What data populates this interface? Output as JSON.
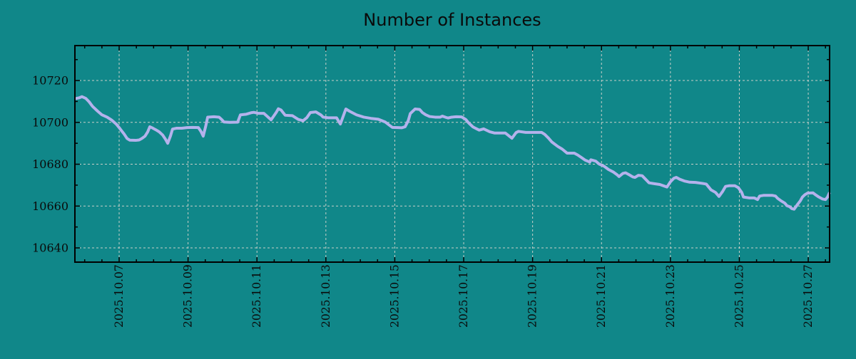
{
  "chart_data": {
    "type": "line",
    "title": "Number of Instances",
    "xlabel": "",
    "ylabel": "",
    "x_tick_labels": [
      "2025.10.07",
      "2025.10.09",
      "2025.10.11",
      "2025.10.13",
      "2025.10.15",
      "2025.10.17",
      "2025.10.19",
      "2025.10.21",
      "2025.10.23",
      "2025.10.25",
      "2025.10.27"
    ],
    "x_tick_days": [
      0,
      2,
      4,
      6,
      8,
      10,
      12,
      14,
      16,
      18,
      20
    ],
    "x_minor_step_days": 0.5,
    "xlim_days": [
      -1.284,
      20.62
    ],
    "y_ticks": [
      10640,
      10660,
      10680,
      10700,
      10720
    ],
    "y_minor_step": 10,
    "ylim": [
      10633.2,
      10736.7
    ],
    "grid": true,
    "legend": "none",
    "colors": {
      "background": "#108789",
      "grid": "#c8cfc8",
      "axis": "#000000",
      "text": "#0a0a0a",
      "line": "#b4b2ec"
    },
    "series": [
      {
        "name": "instances",
        "color": "#b4b2ec",
        "points": [
          [
            -1.28,
            10711.3
          ],
          [
            -1.15,
            10711.8
          ],
          [
            -1.08,
            10712.3
          ],
          [
            -0.97,
            10711.5
          ],
          [
            -0.87,
            10709.8
          ],
          [
            -0.77,
            10707.6
          ],
          [
            -0.62,
            10705.3
          ],
          [
            -0.5,
            10703.6
          ],
          [
            -0.35,
            10702.5
          ],
          [
            -0.21,
            10701.0
          ],
          [
            -0.08,
            10699.1
          ],
          [
            0.0,
            10697.5
          ],
          [
            0.06,
            10696.2
          ],
          [
            0.15,
            10694.3
          ],
          [
            0.23,
            10692.3
          ],
          [
            0.31,
            10691.5
          ],
          [
            0.48,
            10691.4
          ],
          [
            0.58,
            10691.6
          ],
          [
            0.66,
            10692.3
          ],
          [
            0.75,
            10693.4
          ],
          [
            0.83,
            10695.5
          ],
          [
            0.89,
            10697.9
          ],
          [
            0.97,
            10697.3
          ],
          [
            1.06,
            10696.5
          ],
          [
            1.16,
            10695.5
          ],
          [
            1.26,
            10694.0
          ],
          [
            1.35,
            10691.8
          ],
          [
            1.41,
            10690.0
          ],
          [
            1.49,
            10693.5
          ],
          [
            1.55,
            10696.8
          ],
          [
            1.66,
            10697.2
          ],
          [
            1.82,
            10697.2
          ],
          [
            1.97,
            10697.5
          ],
          [
            2.13,
            10697.6
          ],
          [
            2.3,
            10697.5
          ],
          [
            2.38,
            10695.5
          ],
          [
            2.44,
            10693.4
          ],
          [
            2.51,
            10698.0
          ],
          [
            2.57,
            10702.5
          ],
          [
            2.75,
            10702.7
          ],
          [
            2.9,
            10702.5
          ],
          [
            2.98,
            10701.3
          ],
          [
            3.04,
            10700.2
          ],
          [
            3.21,
            10700.0
          ],
          [
            3.44,
            10700.1
          ],
          [
            3.52,
            10703.6
          ],
          [
            3.69,
            10703.9
          ],
          [
            3.83,
            10704.6
          ],
          [
            3.91,
            10704.8
          ],
          [
            4.04,
            10704.3
          ],
          [
            4.2,
            10704.3
          ],
          [
            4.29,
            10703.0
          ],
          [
            4.41,
            10701.2
          ],
          [
            4.56,
            10704.8
          ],
          [
            4.62,
            10706.5
          ],
          [
            4.7,
            10705.9
          ],
          [
            4.82,
            10703.4
          ],
          [
            5.03,
            10703.2
          ],
          [
            5.2,
            10701.4
          ],
          [
            5.34,
            10700.8
          ],
          [
            5.45,
            10702.3
          ],
          [
            5.55,
            10704.7
          ],
          [
            5.71,
            10705.0
          ],
          [
            5.86,
            10703.5
          ],
          [
            5.92,
            10702.5
          ],
          [
            6.07,
            10702.2
          ],
          [
            6.31,
            10702.2
          ],
          [
            6.42,
            10699.2
          ],
          [
            6.58,
            10706.4
          ],
          [
            6.69,
            10705.3
          ],
          [
            6.89,
            10703.6
          ],
          [
            7.1,
            10702.5
          ],
          [
            7.31,
            10701.9
          ],
          [
            7.52,
            10701.5
          ],
          [
            7.72,
            10700.2
          ],
          [
            7.83,
            10698.8
          ],
          [
            7.93,
            10697.6
          ],
          [
            8.09,
            10697.5
          ],
          [
            8.2,
            10697.4
          ],
          [
            8.3,
            10697.9
          ],
          [
            8.39,
            10700.8
          ],
          [
            8.45,
            10704.2
          ],
          [
            8.59,
            10706.4
          ],
          [
            8.72,
            10706.2
          ],
          [
            8.8,
            10704.7
          ],
          [
            8.9,
            10703.6
          ],
          [
            9.01,
            10702.8
          ],
          [
            9.17,
            10702.5
          ],
          [
            9.32,
            10702.5
          ],
          [
            9.38,
            10703.0
          ],
          [
            9.48,
            10702.4
          ],
          [
            9.55,
            10702.1
          ],
          [
            9.65,
            10702.5
          ],
          [
            9.79,
            10702.7
          ],
          [
            9.94,
            10702.6
          ],
          [
            10.06,
            10701.4
          ],
          [
            10.14,
            10699.8
          ],
          [
            10.27,
            10697.8
          ],
          [
            10.45,
            10696.3
          ],
          [
            10.58,
            10696.9
          ],
          [
            10.76,
            10695.5
          ],
          [
            10.9,
            10694.9
          ],
          [
            11.21,
            10694.9
          ],
          [
            11.28,
            10694.0
          ],
          [
            11.4,
            10692.4
          ],
          [
            11.52,
            10695.1
          ],
          [
            11.59,
            10695.7
          ],
          [
            11.8,
            10695.2
          ],
          [
            12.26,
            10695.2
          ],
          [
            12.35,
            10694.3
          ],
          [
            12.46,
            10692.5
          ],
          [
            12.56,
            10690.6
          ],
          [
            12.73,
            10688.5
          ],
          [
            12.86,
            10687.2
          ],
          [
            13.0,
            10685.3
          ],
          [
            13.21,
            10685.3
          ],
          [
            13.31,
            10684.4
          ],
          [
            13.41,
            10683.3
          ],
          [
            13.52,
            10682.0
          ],
          [
            13.62,
            10681.3
          ],
          [
            13.66,
            10681.0
          ],
          [
            13.69,
            10682.1
          ],
          [
            13.83,
            10681.5
          ],
          [
            13.93,
            10680.1
          ],
          [
            14.08,
            10679.0
          ],
          [
            14.2,
            10677.5
          ],
          [
            14.35,
            10676.2
          ],
          [
            14.45,
            10675.0
          ],
          [
            14.51,
            10674.1
          ],
          [
            14.62,
            10675.6
          ],
          [
            14.7,
            10675.9
          ],
          [
            14.8,
            10675.0
          ],
          [
            14.91,
            10673.9
          ],
          [
            14.97,
            10673.7
          ],
          [
            15.07,
            10674.7
          ],
          [
            15.18,
            10674.5
          ],
          [
            15.28,
            10672.8
          ],
          [
            15.38,
            10671.1
          ],
          [
            15.53,
            10670.7
          ],
          [
            15.69,
            10670.3
          ],
          [
            15.9,
            10669.1
          ],
          [
            16.0,
            10671.6
          ],
          [
            16.1,
            10673.3
          ],
          [
            16.17,
            10673.7
          ],
          [
            16.27,
            10672.8
          ],
          [
            16.42,
            10671.9
          ],
          [
            16.56,
            10671.4
          ],
          [
            16.73,
            10671.3
          ],
          [
            16.94,
            10670.8
          ],
          [
            17.04,
            10670.5
          ],
          [
            17.18,
            10667.7
          ],
          [
            17.31,
            10666.5
          ],
          [
            17.41,
            10664.6
          ],
          [
            17.52,
            10667.1
          ],
          [
            17.6,
            10669.4
          ],
          [
            17.7,
            10669.7
          ],
          [
            17.87,
            10669.7
          ],
          [
            17.97,
            10668.8
          ],
          [
            18.07,
            10666.5
          ],
          [
            18.12,
            10664.3
          ],
          [
            18.28,
            10663.9
          ],
          [
            18.43,
            10663.9
          ],
          [
            18.53,
            10663.1
          ],
          [
            18.59,
            10664.8
          ],
          [
            18.7,
            10665.1
          ],
          [
            18.96,
            10665.1
          ],
          [
            19.05,
            10664.8
          ],
          [
            19.11,
            10663.7
          ],
          [
            19.21,
            10662.5
          ],
          [
            19.32,
            10661.4
          ],
          [
            19.38,
            10660.2
          ],
          [
            19.46,
            10659.7
          ],
          [
            19.52,
            10658.8
          ],
          [
            19.59,
            10658.5
          ],
          [
            19.69,
            10660.8
          ],
          [
            19.77,
            10662.5
          ],
          [
            19.83,
            10664.3
          ],
          [
            19.9,
            10665.4
          ],
          [
            19.98,
            10666.2
          ],
          [
            20.14,
            10666.3
          ],
          [
            20.21,
            10665.4
          ],
          [
            20.31,
            10664.3
          ],
          [
            20.41,
            10663.4
          ],
          [
            20.5,
            10663.1
          ],
          [
            20.56,
            10664.3
          ],
          [
            20.62,
            10666.5
          ]
        ]
      }
    ]
  },
  "layout_hints": {
    "x_labels_rotated_degrees": 90,
    "legend_position": "none"
  }
}
